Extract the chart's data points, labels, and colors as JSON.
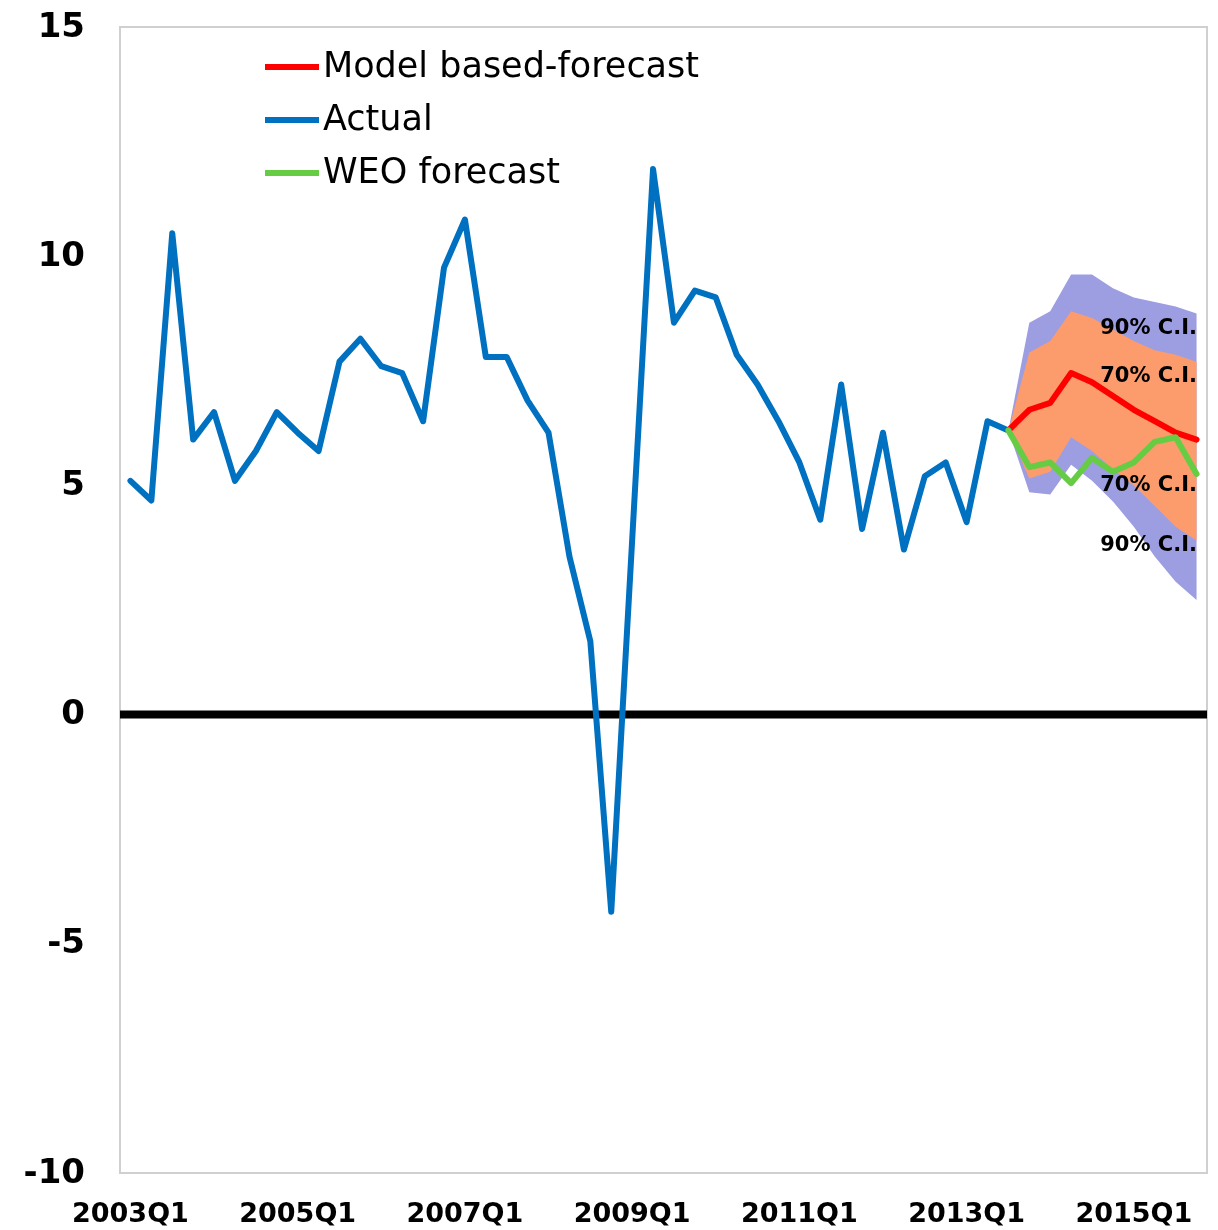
{
  "chart_data": {
    "type": "line",
    "categories": [
      "2003Q1",
      null,
      null,
      null,
      null,
      null,
      null,
      null,
      "2005Q1",
      null,
      null,
      null,
      null,
      null,
      null,
      null,
      "2007Q1",
      null,
      null,
      null,
      null,
      null,
      null,
      null,
      "2009Q1",
      null,
      null,
      null,
      null,
      null,
      null,
      null,
      "2011Q1",
      null,
      null,
      null,
      null,
      null,
      null,
      null,
      "2013Q1",
      null,
      null,
      null,
      null,
      null,
      null,
      null,
      "2015Q1",
      null,
      null,
      null
    ],
    "ylim": [
      -10,
      15
    ],
    "yticks": [
      -10,
      -5,
      0,
      5,
      10,
      15
    ],
    "grid": false,
    "legend": "top left",
    "series": [
      {
        "color": "#9d9de2",
        "values": [
          null,
          null,
          null,
          null,
          null,
          null,
          null,
          null,
          null,
          null,
          null,
          null,
          null,
          null,
          null,
          null,
          null,
          null,
          null,
          null,
          null,
          null,
          null,
          null,
          null,
          null,
          null,
          null,
          null,
          null,
          null,
          null,
          null,
          null,
          null,
          null,
          null,
          null,
          null,
          null,
          null,
          null,
          null,
          null,
          null,
          null,
          null,
          null,
          null,
          null,
          null,
          null
        ],
        "lower": [
          null,
          null,
          null,
          null,
          null,
          null,
          null,
          null,
          null,
          null,
          null,
          null,
          null,
          null,
          null,
          null,
          null,
          null,
          null,
          null,
          null,
          null,
          null,
          null,
          null,
          null,
          null,
          null,
          null,
          null,
          null,
          null,
          null,
          null,
          null,
          null,
          null,
          null,
          null,
          null,
          null,
          null,
          6.2,
          4.85,
          4.8,
          5.45,
          5.1,
          4.65,
          4.1,
          3.45,
          2.9,
          2.5
        ],
        "upper": [
          null,
          null,
          null,
          null,
          null,
          null,
          null,
          null,
          null,
          null,
          null,
          null,
          null,
          null,
          null,
          null,
          null,
          null,
          null,
          null,
          null,
          null,
          null,
          null,
          null,
          null,
          null,
          null,
          null,
          null,
          null,
          null,
          null,
          null,
          null,
          null,
          null,
          null,
          null,
          null,
          null,
          null,
          6.2,
          8.55,
          8.8,
          9.6,
          9.6,
          9.3,
          9.1,
          9.0,
          8.9,
          8.75
        ]
      },
      {
        "color": "#fc9c6c",
        "values": [
          null,
          null,
          null,
          null,
          null,
          null,
          null,
          null,
          null,
          null,
          null,
          null,
          null,
          null,
          null,
          null,
          null,
          null,
          null,
          null,
          null,
          null,
          null,
          null,
          null,
          null,
          null,
          null,
          null,
          null,
          null,
          null,
          null,
          null,
          null,
          null,
          null,
          null,
          null,
          null,
          null,
          null,
          null,
          null,
          null,
          null,
          null,
          null,
          null,
          null,
          null,
          null
        ],
        "lower": [
          null,
          null,
          null,
          null,
          null,
          null,
          null,
          null,
          null,
          null,
          null,
          null,
          null,
          null,
          null,
          null,
          null,
          null,
          null,
          null,
          null,
          null,
          null,
          null,
          null,
          null,
          null,
          null,
          null,
          null,
          null,
          null,
          null,
          null,
          null,
          null,
          null,
          null,
          null,
          null,
          null,
          null,
          6.2,
          5.15,
          5.3,
          6.05,
          5.75,
          5.35,
          5.0,
          4.55,
          4.1,
          3.8
        ],
        "upper": [
          null,
          null,
          null,
          null,
          null,
          null,
          null,
          null,
          null,
          null,
          null,
          null,
          null,
          null,
          null,
          null,
          null,
          null,
          null,
          null,
          null,
          null,
          null,
          null,
          null,
          null,
          null,
          null,
          null,
          null,
          null,
          null,
          null,
          null,
          null,
          null,
          null,
          null,
          null,
          null,
          null,
          null,
          6.2,
          7.9,
          8.15,
          8.8,
          8.65,
          8.4,
          8.15,
          7.95,
          7.85,
          7.7
        ]
      },
      {
        "name": "Model based-forecast",
        "color": "#ff0000",
        "values": [
          null,
          null,
          null,
          null,
          null,
          null,
          null,
          null,
          null,
          null,
          null,
          null,
          null,
          null,
          null,
          null,
          null,
          null,
          null,
          null,
          null,
          null,
          null,
          null,
          null,
          null,
          null,
          null,
          null,
          null,
          null,
          null,
          null,
          null,
          null,
          null,
          null,
          null,
          null,
          null,
          null,
          null,
          6.2,
          6.65,
          6.8,
          7.45,
          7.25,
          6.95,
          6.65,
          6.4,
          6.15,
          6.0
        ]
      },
      {
        "name": "Actual",
        "color": "#0070c0",
        "values": [
          5.1,
          4.67,
          10.5,
          6.0,
          6.6,
          5.1,
          5.75,
          6.6,
          6.15,
          5.75,
          7.7,
          8.2,
          7.6,
          7.45,
          6.4,
          9.75,
          10.8,
          7.8,
          7.8,
          6.85,
          6.15,
          3.45,
          1.6,
          -4.3,
          3.8,
          11.9,
          8.55,
          9.25,
          9.1,
          7.85,
          7.2,
          6.4,
          5.5,
          4.25,
          7.2,
          4.05,
          6.15,
          3.6,
          5.2,
          5.5,
          4.2,
          6.4,
          6.2,
          null,
          null,
          null,
          null,
          null,
          null,
          null,
          null,
          null
        ]
      },
      {
        "name": "WEO forecast",
        "color": "#66cc44",
        "values": [
          null,
          null,
          null,
          null,
          null,
          null,
          null,
          null,
          null,
          null,
          null,
          null,
          null,
          null,
          null,
          null,
          null,
          null,
          null,
          null,
          null,
          null,
          null,
          null,
          null,
          null,
          null,
          null,
          null,
          null,
          null,
          null,
          null,
          null,
          null,
          null,
          null,
          null,
          null,
          null,
          null,
          null,
          6.2,
          5.4,
          5.5,
          5.05,
          5.6,
          5.3,
          5.5,
          5.95,
          6.05,
          5.25
        ]
      }
    ],
    "ref_lines": [
      {
        "axis": "y",
        "value": 0,
        "color": "#000000"
      }
    ],
    "annotations": [
      "90% C.I.",
      "70% C.I.",
      "70% C.I.",
      "90% C.I."
    ]
  }
}
